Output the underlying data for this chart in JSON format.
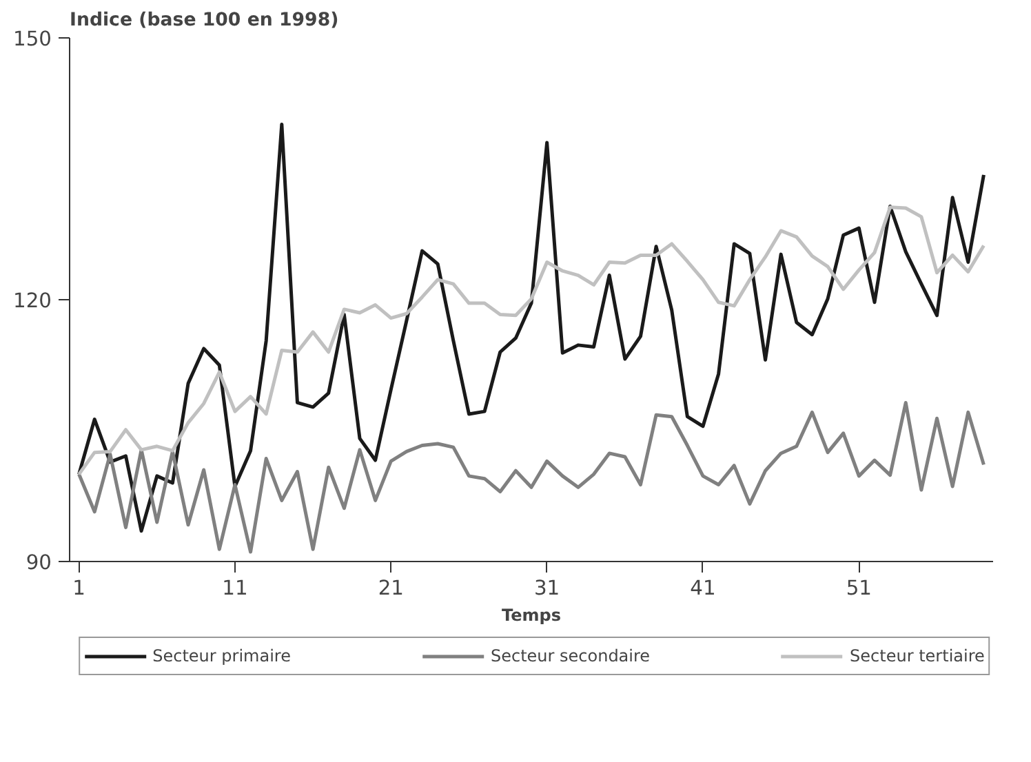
{
  "chart_data": {
    "type": "line",
    "ylabel": "Indice (base 100 en 1998)",
    "xlabel": "Temps",
    "x": [
      1,
      2,
      3,
      4,
      5,
      6,
      7,
      8,
      9,
      10,
      11,
      12,
      13,
      14,
      15,
      16,
      17,
      18,
      19,
      20,
      21,
      22,
      23,
      24,
      25,
      26,
      27,
      28,
      29,
      30,
      31,
      32,
      33,
      34,
      35,
      36,
      37,
      38,
      39,
      40,
      41,
      42,
      43,
      44,
      45,
      46,
      47,
      48,
      49,
      50,
      51,
      52,
      53,
      54,
      55,
      56,
      57,
      58,
      59
    ],
    "xlim": [
      0.4,
      59.6
    ],
    "xticks": [
      1,
      11,
      21,
      31,
      41,
      51
    ],
    "ylim": [
      90,
      150
    ],
    "yticks": [
      90,
      120,
      150
    ],
    "grid": false,
    "legend": "bottom",
    "marker": "none",
    "line_style": "solid",
    "series": [
      {
        "name": "Secteur primaire",
        "color": "#1a1a1a",
        "values": [
          100,
          106.3,
          101.4,
          102.1,
          93.5,
          99.8,
          99.0,
          110.4,
          114.4,
          112.5,
          98.6,
          102.7,
          115.3,
          140.1,
          108.2,
          107.7,
          109.3,
          118.3,
          104.1,
          101.6,
          109.7,
          117.6,
          125.6,
          124.1,
          115.3,
          106.9,
          107.2,
          114.0,
          115.6,
          119.6,
          138.0,
          113.9,
          114.8,
          114.6,
          122.8,
          113.2,
          115.8,
          126.1,
          118.8,
          106.6,
          105.5,
          111.5,
          126.4,
          125.3,
          113.1,
          125.2,
          117.4,
          116.0,
          120.1,
          127.4,
          128.2,
          119.7,
          130.7,
          125.5,
          121.8,
          118.2,
          131.7,
          124.3,
          134.3
        ]
      },
      {
        "name": "Secteur secondaire",
        "color": "#808080",
        "values": [
          100,
          95.7,
          102.3,
          93.9,
          102.8,
          94.5,
          102.6,
          94.2,
          100.5,
          91.4,
          98.8,
          91.1,
          101.8,
          97.0,
          100.3,
          91.4,
          100.8,
          96.1,
          102.8,
          97.0,
          101.5,
          102.6,
          103.3,
          103.5,
          103.1,
          99.8,
          99.5,
          98.0,
          100.4,
          98.5,
          101.5,
          99.8,
          98.5,
          100.0,
          102.4,
          102.0,
          98.8,
          106.8,
          106.6,
          103.3,
          99.8,
          98.8,
          101.0,
          96.6,
          100.4,
          102.4,
          103.2,
          107.1,
          102.5,
          104.7,
          99.8,
          101.6,
          99.9,
          108.2,
          98.2,
          106.4,
          98.6,
          107.1,
          101.1
        ]
      },
      {
        "name": "Secteur tertiaire",
        "color": "#c0c0c0",
        "values": [
          100,
          102.5,
          102.6,
          105.1,
          102.8,
          103.2,
          102.7,
          105.9,
          108.1,
          111.7,
          107.2,
          108.9,
          106.9,
          114.2,
          114.0,
          116.3,
          114.0,
          118.9,
          118.5,
          119.4,
          117.9,
          118.4,
          120.3,
          122.3,
          121.8,
          119.6,
          119.6,
          118.3,
          118.2,
          120.1,
          124.3,
          123.3,
          122.8,
          121.7,
          124.3,
          124.2,
          125.1,
          125.1,
          126.4,
          124.4,
          122.3,
          119.7,
          119.3,
          122.3,
          124.9,
          127.9,
          127.2,
          125.0,
          123.8,
          121.2,
          123.4,
          125.4,
          130.6,
          130.5,
          129.5,
          123.1,
          125.1,
          123.2,
          126.2
        ]
      }
    ]
  }
}
